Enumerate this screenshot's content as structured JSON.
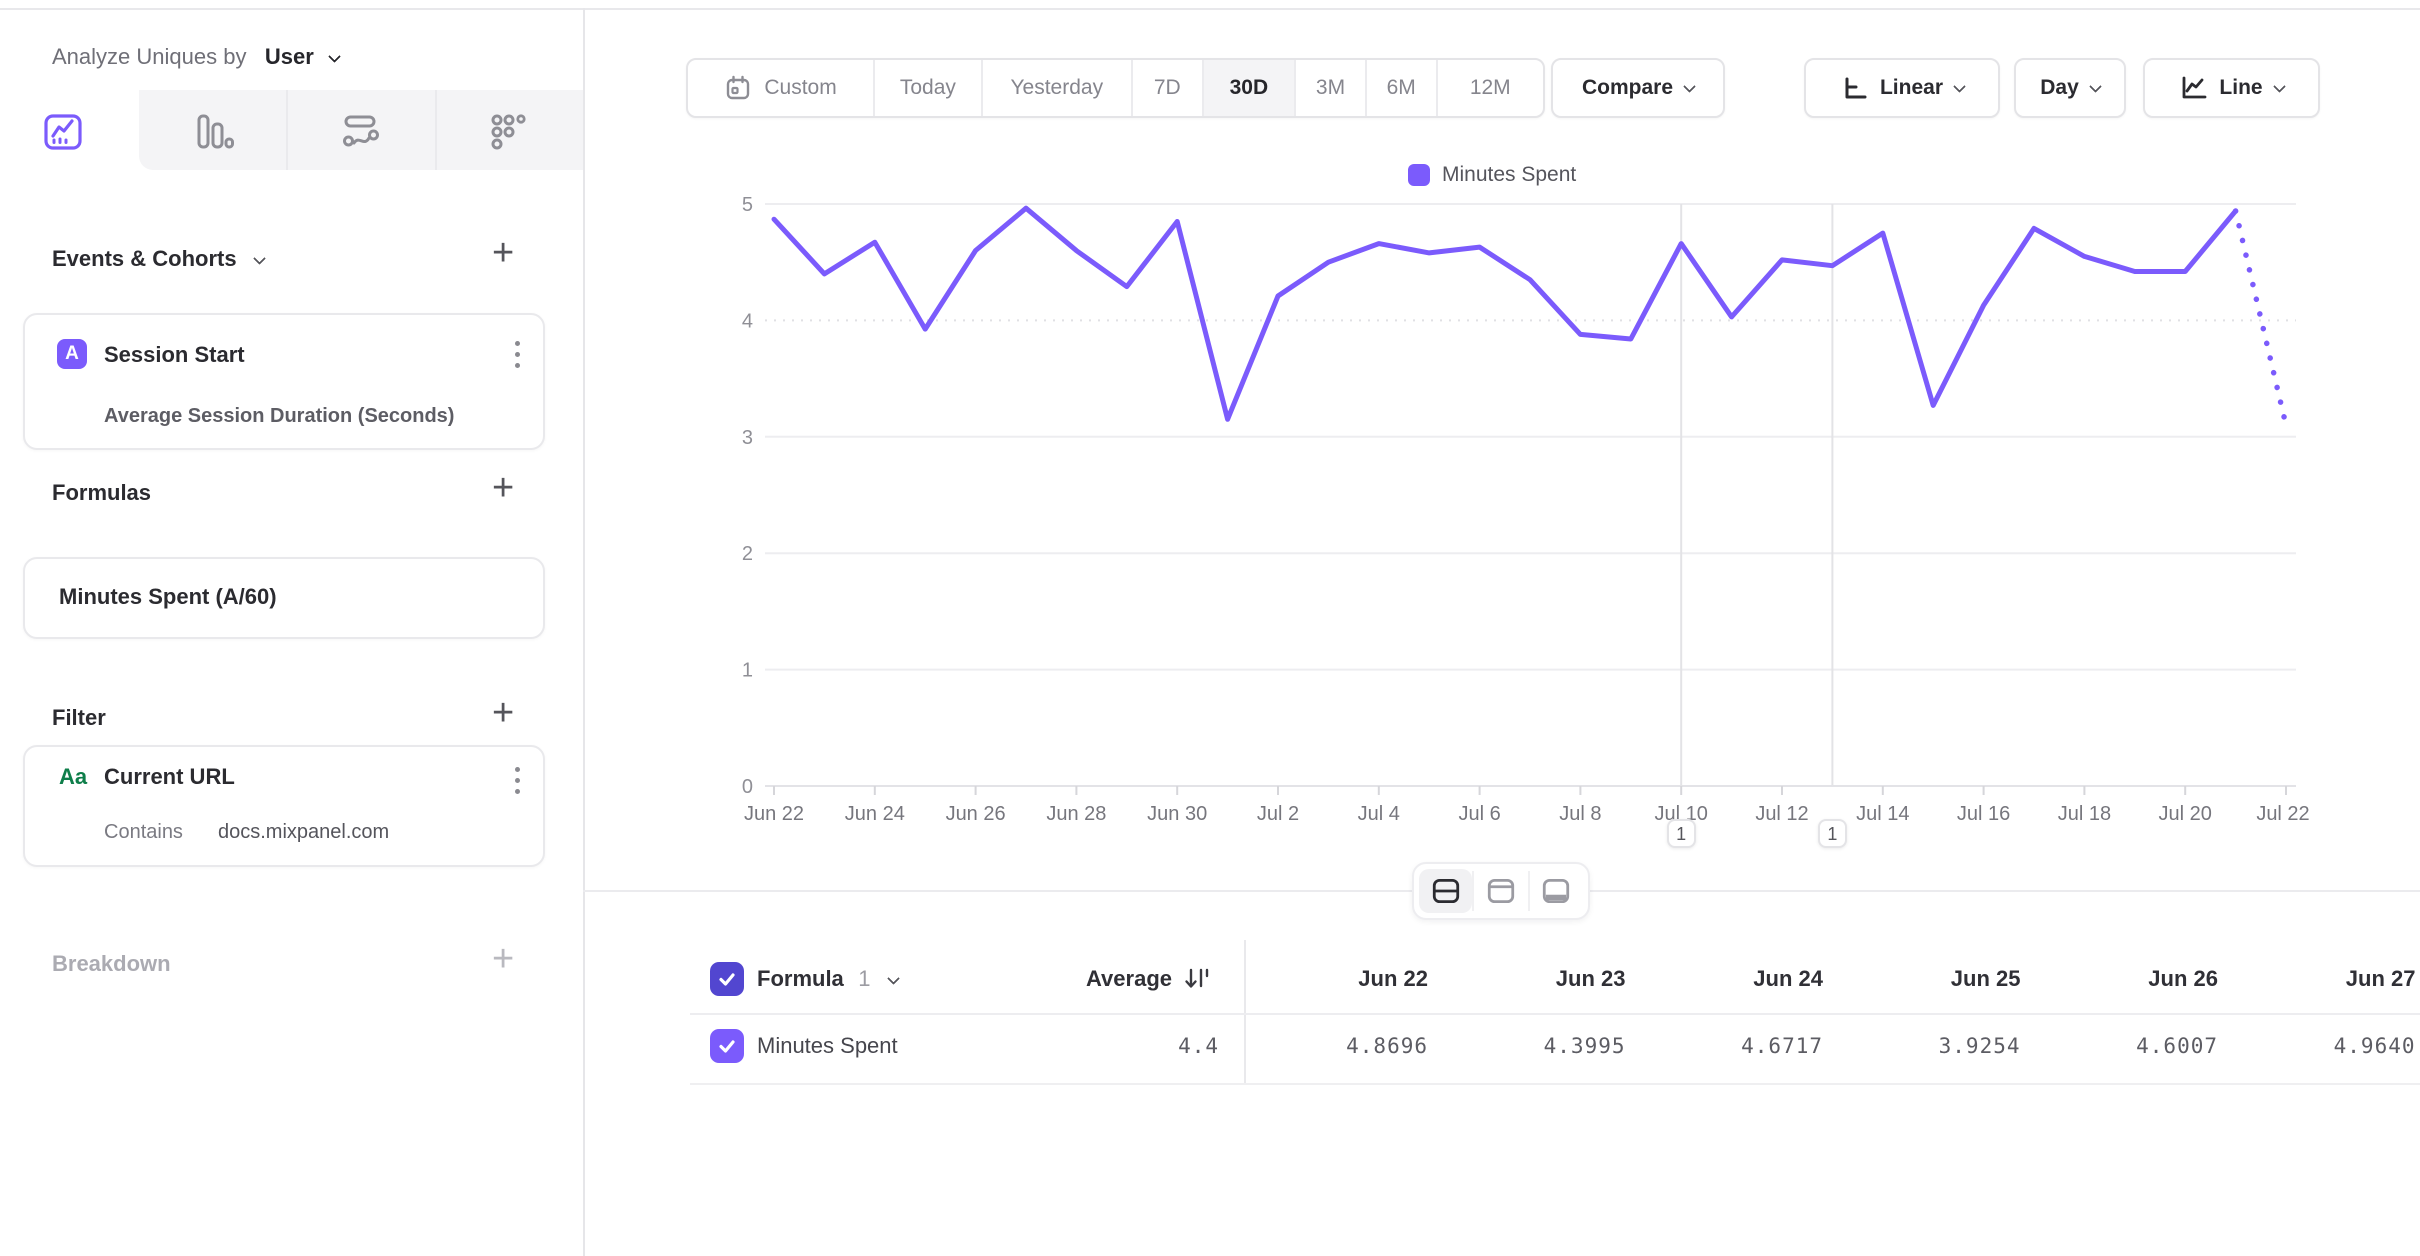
{
  "sidebar": {
    "analyze_label": "Analyze Uniques by",
    "analyze_value": "User",
    "sections": {
      "events_header": "Events & Cohorts",
      "formulas_header": "Formulas",
      "filter_header": "Filter",
      "breakdown_header": "Breakdown"
    },
    "event_card": {
      "badge": "A",
      "title": "Session Start",
      "subtitle": "Average Session Duration (Seconds)"
    },
    "formula_card": {
      "title": "Minutes Spent (A/60)"
    },
    "filter_card": {
      "badge": "Aa",
      "title": "Current URL",
      "operator": "Contains",
      "value": "docs.mixpanel.com"
    }
  },
  "toolbar": {
    "date_ranges": [
      "Custom",
      "Today",
      "Yesterday",
      "7D",
      "30D",
      "3M",
      "6M",
      "12M"
    ],
    "selected_range": "30D",
    "compare_label": "Compare",
    "scale_label": "Linear",
    "interval_label": "Day",
    "chart_type_label": "Line"
  },
  "chart_data": {
    "type": "line",
    "title": "",
    "legend": [
      "Minutes Spent"
    ],
    "legend_position": "top",
    "series_color": "#7b5bfc",
    "grid": "horizontal",
    "ylim": [
      0,
      5
    ],
    "y_ticks": [
      0,
      1,
      2,
      3,
      4,
      5
    ],
    "dotted_y_tick": 4,
    "x": [
      "Jun 22",
      "Jun 23",
      "Jun 24",
      "Jun 25",
      "Jun 26",
      "Jun 27",
      "Jun 28",
      "Jun 29",
      "Jun 30",
      "Jul 1",
      "Jul 2",
      "Jul 3",
      "Jul 4",
      "Jul 5",
      "Jul 6",
      "Jul 7",
      "Jul 8",
      "Jul 9",
      "Jul 10",
      "Jul 11",
      "Jul 12",
      "Jul 13",
      "Jul 14",
      "Jul 15",
      "Jul 16",
      "Jul 17",
      "Jul 18",
      "Jul 19",
      "Jul 20",
      "Jul 21",
      "Jul 22"
    ],
    "x_tick_labels": [
      "Jun 22",
      "Jun 24",
      "Jun 26",
      "Jun 28",
      "Jun 30",
      "Jul 2",
      "Jul 4",
      "Jul 6",
      "Jul 8",
      "Jul 10",
      "Jul 12",
      "Jul 14",
      "Jul 16",
      "Jul 18",
      "Jul 20",
      "Jul 22"
    ],
    "series": [
      {
        "name": "Minutes Spent",
        "values": [
          4.8696,
          4.3995,
          4.6717,
          3.9254,
          4.6007,
          4.964,
          4.6,
          4.29,
          4.85,
          3.15,
          4.21,
          4.5,
          4.66,
          4.58,
          4.63,
          4.35,
          3.88,
          3.84,
          4.66,
          4.03,
          4.52,
          4.47,
          4.75,
          3.27,
          4.13,
          4.79,
          4.55,
          4.42,
          4.42,
          4.94,
          3.1
        ],
        "incomplete_from_index": 29
      }
    ],
    "annotations": [
      {
        "label": "1",
        "date": "Jul 10",
        "day_index": 18
      },
      {
        "label": "1",
        "date": "Jul 13",
        "day_index": 21
      }
    ]
  },
  "table": {
    "group_label": "Formula",
    "group_index": "1",
    "average_header": "Average",
    "columns": [
      "Jun 22",
      "Jun 23",
      "Jun 24",
      "Jun 25",
      "Jun 26",
      "Jun 27"
    ],
    "rows": [
      {
        "label": "Minutes Spent",
        "average": "4.4",
        "values": [
          "4.8696",
          "4.3995",
          "4.6717",
          "3.9254",
          "4.6007",
          "4.9640"
        ]
      }
    ]
  }
}
